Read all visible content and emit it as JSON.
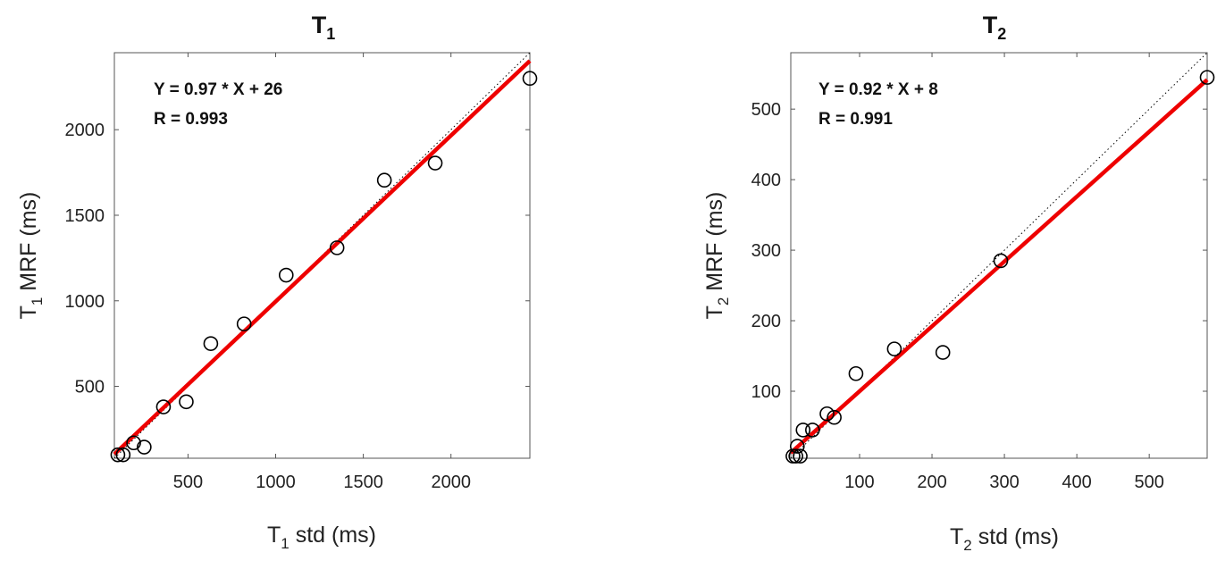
{
  "colors": {
    "fit_line": "#ee0000",
    "identity_line": "#000000",
    "marker": "#000000",
    "axes": "#555555",
    "text": "#222222"
  },
  "chart_data": [
    {
      "type": "scatter",
      "title_main": "T",
      "title_sub": "1",
      "xlabel_main": "T",
      "xlabel_sub": "1",
      "xlabel_rest": " std (ms)",
      "ylabel_main": "T",
      "ylabel_sub": "1",
      "ylabel_rest": " MRF (ms)",
      "xlim": [
        80,
        2450
      ],
      "ylim": [
        80,
        2450
      ],
      "xticks": [
        500,
        1000,
        1500,
        2000
      ],
      "yticks": [
        500,
        1000,
        1500,
        2000
      ],
      "grid": false,
      "annotation": [
        "Y = 0.97 * X + 26",
        "R = 0.993"
      ],
      "fit": {
        "slope": 0.97,
        "intercept": 26
      },
      "identity_line": true,
      "points": [
        {
          "x": 100,
          "y": 100
        },
        {
          "x": 130,
          "y": 100
        },
        {
          "x": 190,
          "y": 170
        },
        {
          "x": 250,
          "y": 145
        },
        {
          "x": 360,
          "y": 380
        },
        {
          "x": 490,
          "y": 410
        },
        {
          "x": 630,
          "y": 750
        },
        {
          "x": 820,
          "y": 865
        },
        {
          "x": 1060,
          "y": 1150
        },
        {
          "x": 1350,
          "y": 1310
        },
        {
          "x": 1620,
          "y": 1705
        },
        {
          "x": 1910,
          "y": 1805
        },
        {
          "x": 2450,
          "y": 2300
        }
      ]
    },
    {
      "type": "scatter",
      "title_main": "T",
      "title_sub": "2",
      "xlabel_main": "T",
      "xlabel_sub": "2",
      "xlabel_rest": " std (ms)",
      "ylabel_main": "T",
      "ylabel_sub": "2",
      "ylabel_rest": " MRF (ms)",
      "xlim": [
        5,
        580
      ],
      "ylim": [
        5,
        580
      ],
      "xticks": [
        100,
        200,
        300,
        400,
        500
      ],
      "yticks": [
        100,
        200,
        300,
        400,
        500
      ],
      "grid": false,
      "annotation": [
        "Y = 0.92 * X + 8",
        "R = 0.991"
      ],
      "fit": {
        "slope": 0.92,
        "intercept": 8
      },
      "identity_line": true,
      "points": [
        {
          "x": 8,
          "y": 8
        },
        {
          "x": 12,
          "y": 8
        },
        {
          "x": 18,
          "y": 8
        },
        {
          "x": 14,
          "y": 22
        },
        {
          "x": 22,
          "y": 45
        },
        {
          "x": 35,
          "y": 45
        },
        {
          "x": 55,
          "y": 68
        },
        {
          "x": 65,
          "y": 63
        },
        {
          "x": 95,
          "y": 125
        },
        {
          "x": 148,
          "y": 160
        },
        {
          "x": 215,
          "y": 155
        },
        {
          "x": 295,
          "y": 285
        },
        {
          "x": 580,
          "y": 545
        }
      ]
    }
  ]
}
